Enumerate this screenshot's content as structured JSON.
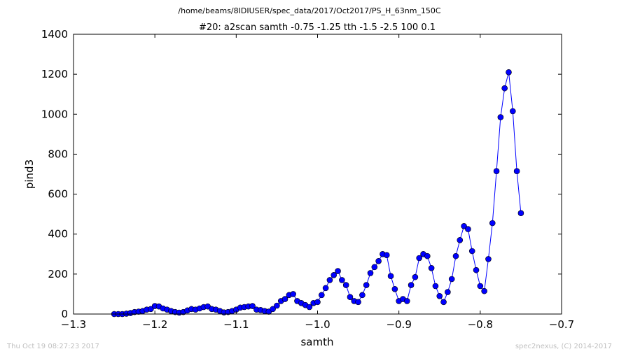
{
  "header": {
    "file_path": "/home/beams/8IDIUSER/spec_data/2017/Oct2017/PS_H_63nm_150C"
  },
  "footer": {
    "timestamp": "Thu Oct 19 08:27:23 2017",
    "credit": "spec2nexus, (C) 2014-2017"
  },
  "chart_data": {
    "type": "line",
    "title": "#20: a2scan  samth -0.75 -1.25  tth -1.5 -2.5  100 0.1",
    "xlabel": "samth",
    "ylabel": "pind3",
    "xlim": [
      -1.3,
      -0.7
    ],
    "ylim": [
      0,
      1400
    ],
    "xticks": [
      -1.3,
      -1.2,
      -1.1,
      -1.0,
      -0.9,
      -0.8,
      -0.7
    ],
    "xtick_labels": [
      "−1.3",
      "−1.2",
      "−1.1",
      "−1.0",
      "−0.9",
      "−0.8",
      "−0.7"
    ],
    "yticks": [
      0,
      200,
      400,
      600,
      800,
      1000,
      1200,
      1400
    ],
    "ytick_labels": [
      "0",
      "200",
      "400",
      "600",
      "800",
      "1000",
      "1200",
      "1400"
    ],
    "grid": false,
    "marker": "circle",
    "line_color": "#0000ff",
    "marker_color": "#0000ff",
    "x": [
      -1.25,
      -1.245,
      -1.24,
      -1.235,
      -1.23,
      -1.225,
      -1.22,
      -1.215,
      -1.21,
      -1.205,
      -1.2,
      -1.195,
      -1.19,
      -1.185,
      -1.18,
      -1.175,
      -1.17,
      -1.165,
      -1.16,
      -1.155,
      -1.15,
      -1.145,
      -1.14,
      -1.135,
      -1.13,
      -1.125,
      -1.12,
      -1.115,
      -1.11,
      -1.105,
      -1.1,
      -1.095,
      -1.09,
      -1.085,
      -1.08,
      -1.075,
      -1.07,
      -1.065,
      -1.06,
      -1.055,
      -1.05,
      -1.045,
      -1.04,
      -1.035,
      -1.03,
      -1.025,
      -1.02,
      -1.015,
      -1.01,
      -1.005,
      -1.0,
      -0.995,
      -0.99,
      -0.985,
      -0.98,
      -0.975,
      -0.97,
      -0.965,
      -0.96,
      -0.955,
      -0.95,
      -0.945,
      -0.94,
      -0.935,
      -0.93,
      -0.925,
      -0.92,
      -0.915,
      -0.91,
      -0.905,
      -0.9,
      -0.895,
      -0.89,
      -0.885,
      -0.88,
      -0.875,
      -0.87,
      -0.865,
      -0.86,
      -0.855,
      -0.85,
      -0.845,
      -0.84,
      -0.835,
      -0.83,
      -0.825,
      -0.82,
      -0.815,
      -0.81,
      -0.805,
      -0.8,
      -0.795,
      -0.79,
      -0.785,
      -0.78,
      -0.775,
      -0.77,
      -0.765,
      -0.76,
      -0.755,
      -0.75
    ],
    "y": [
      0,
      0,
      0,
      2,
      5,
      10,
      12,
      15,
      22,
      25,
      40,
      38,
      28,
      22,
      15,
      10,
      7,
      10,
      18,
      25,
      22,
      28,
      35,
      38,
      25,
      22,
      15,
      8,
      10,
      15,
      22,
      32,
      35,
      38,
      40,
      22,
      20,
      15,
      12,
      25,
      42,
      65,
      75,
      95,
      100,
      65,
      55,
      45,
      35,
      55,
      60,
      95,
      130,
      170,
      195,
      215,
      170,
      145,
      85,
      65,
      60,
      95,
      145,
      205,
      235,
      265,
      300,
      295,
      190,
      125,
      65,
      75,
      65,
      145,
      185,
      280,
      300,
      290,
      230,
      140,
      90,
      60,
      110,
      175,
      290,
      370,
      440,
      425,
      315,
      220,
      140,
      115,
      275,
      455,
      715,
      985,
      1130,
      1210,
      1015,
      715,
      505
    ]
  }
}
